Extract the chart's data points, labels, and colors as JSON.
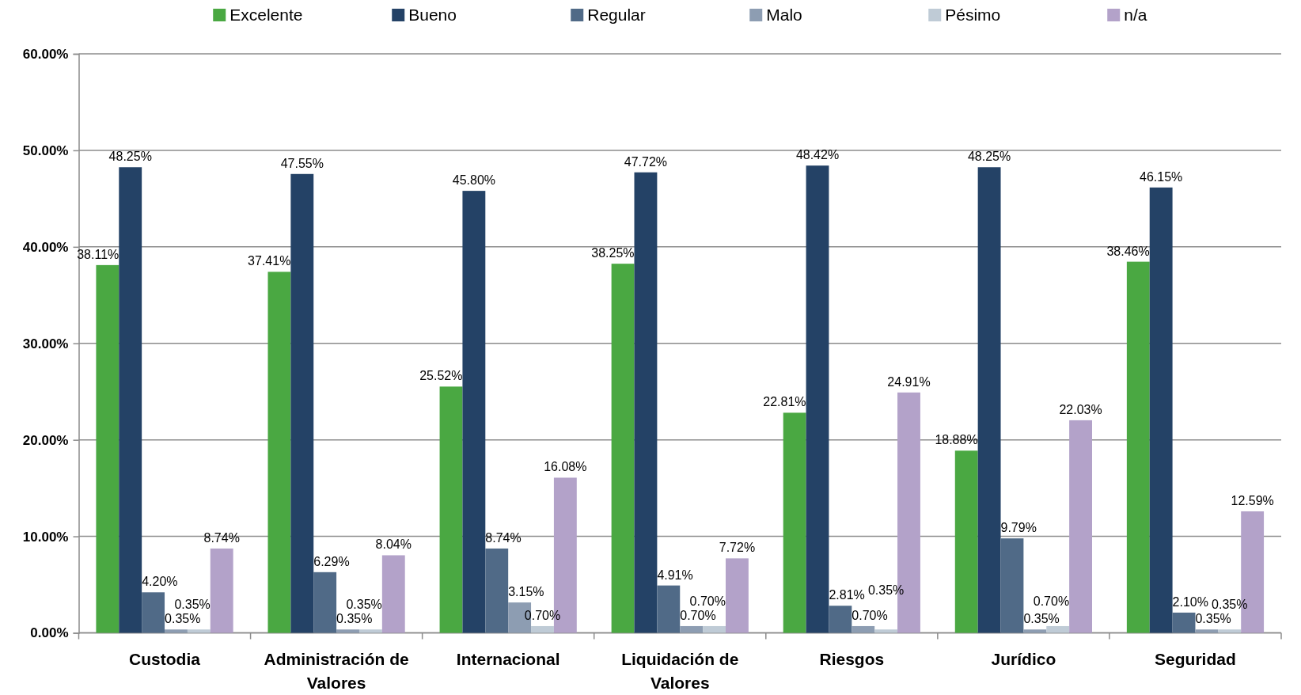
{
  "chart_data": {
    "type": "bar",
    "categories": [
      "Custodia",
      "Administración de Valores",
      "Internacional",
      "Liquidación de Valores",
      "Riesgos",
      "Jurídico",
      "Seguridad"
    ],
    "series": [
      {
        "name": "Excelente",
        "color": "#4aa842",
        "values": [
          38.11,
          37.41,
          25.52,
          38.25,
          22.81,
          18.88,
          38.46
        ],
        "value_labels": [
          "38.11%",
          "37.41%",
          "25.52%",
          "38.25%",
          "22.81%",
          "18.88%",
          "38.46%"
        ]
      },
      {
        "name": "Bueno",
        "color": "#244266",
        "values": [
          48.25,
          47.55,
          45.8,
          47.72,
          48.42,
          48.25,
          46.15
        ],
        "value_labels": [
          "48.25%",
          "47.55%",
          "45.80%",
          "47.72%",
          "48.42%",
          "48.25%",
          "46.15%"
        ]
      },
      {
        "name": "Regular",
        "color": "#506a87",
        "values": [
          4.2,
          6.29,
          8.74,
          4.91,
          2.81,
          9.79,
          2.1
        ],
        "value_labels": [
          "4.20%",
          "6.29%",
          "8.74%",
          "4.91%",
          "2.81%",
          "9.79%",
          "2.10%"
        ]
      },
      {
        "name": "Malo",
        "color": "#8d9db2",
        "values": [
          0.35,
          0.35,
          3.15,
          0.7,
          0.7,
          0.35,
          0.35
        ],
        "value_labels": [
          "0.35%",
          "0.35%",
          "3.15%",
          "0.70%",
          "0.70%",
          "0.35%",
          "0.35%"
        ]
      },
      {
        "name": "Pésimo",
        "color": "#bfcbd6",
        "values": [
          0.35,
          0.35,
          0.7,
          0.7,
          0.35,
          0.7,
          0.35
        ],
        "value_labels": [
          "0.35%",
          "0.35%",
          "0.70%",
          "0.70%",
          "0.35%",
          "0.70%",
          "0.35%"
        ]
      },
      {
        "name": "n/a",
        "color": "#b3a2c9",
        "values": [
          8.74,
          8.04,
          16.08,
          7.72,
          24.91,
          22.03,
          12.59
        ],
        "value_labels": [
          "8.74%",
          "8.04%",
          "16.08%",
          "7.72%",
          "24.91%",
          "22.03%",
          "12.59%"
        ]
      }
    ],
    "ylim": [
      0,
      60
    ],
    "yticks": [
      {
        "value": 0,
        "label": "0.00%"
      },
      {
        "value": 10,
        "label": "10.00%"
      },
      {
        "value": 20,
        "label": "20.00%"
      },
      {
        "value": 30,
        "label": "30.00%"
      },
      {
        "value": 40,
        "label": "40.00%"
      },
      {
        "value": 50,
        "label": "50.00%"
      },
      {
        "value": 60,
        "label": "60.00%"
      }
    ],
    "grid": "y",
    "legend": "top"
  }
}
